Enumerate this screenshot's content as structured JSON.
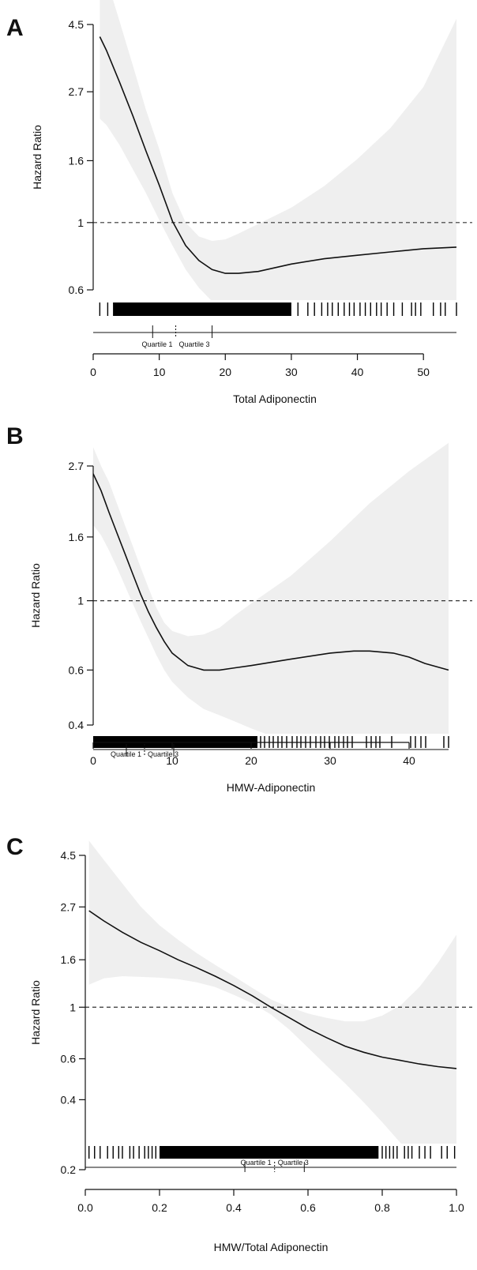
{
  "chart_data": [
    {
      "type": "line",
      "panel_label": "A",
      "xlabel": "Total Adiponectin",
      "ylabel": "Hazard Ratio",
      "log_y": true,
      "xlim": [
        0,
        55
      ],
      "ylim": [
        0.6,
        4.5
      ],
      "x_ticks": [
        0,
        10,
        20,
        30,
        40,
        50
      ],
      "y_ticks": [
        0.6,
        1,
        1.6,
        2.7,
        4.5
      ],
      "y_tick_labels": [
        "0.6",
        "1",
        "1.6",
        "2.7",
        "4.5"
      ],
      "reference_line": 1,
      "series": [
        {
          "x": [
            1,
            2,
            4,
            6,
            8,
            10,
            12,
            14,
            16,
            18,
            20,
            22,
            25,
            30,
            35,
            40,
            45,
            50,
            55
          ],
          "y": [
            4.1,
            3.7,
            2.9,
            2.25,
            1.72,
            1.33,
            1.01,
            0.84,
            0.75,
            0.7,
            0.68,
            0.68,
            0.69,
            0.73,
            0.76,
            0.78,
            0.8,
            0.82,
            0.83
          ]
        }
      ],
      "ci_band": {
        "x": [
          1,
          2,
          4,
          6,
          8,
          10,
          12,
          14,
          16,
          18,
          20,
          22,
          25,
          30,
          35,
          40,
          45,
          50,
          55
        ],
        "lower": [
          2.2,
          2.1,
          1.8,
          1.5,
          1.25,
          1.02,
          0.84,
          0.7,
          0.61,
          0.55,
          0.5,
          0.46,
          0.42,
          0.36,
          0.31,
          0.27,
          0.23,
          0.2,
          0.17
        ],
        "upper": [
          7.8,
          6.4,
          4.6,
          3.3,
          2.35,
          1.75,
          1.25,
          1.0,
          0.9,
          0.87,
          0.88,
          0.92,
          0.99,
          1.12,
          1.32,
          1.62,
          2.05,
          2.8,
          4.7
        ]
      },
      "rug": {
        "dense_range": [
          3,
          30
        ],
        "ticks": [
          1,
          2.2,
          31,
          32.5,
          33.5,
          34.6,
          35.5,
          36.2,
          37.1,
          38,
          38.8,
          39.5,
          40.4,
          41.2,
          42,
          42.9,
          43.6,
          44.5,
          45.5,
          46.8,
          48.2,
          48.8,
          49.6,
          51.5,
          52.6,
          53.3,
          55
        ]
      },
      "quartiles": {
        "labels": [
          "Quartile 1",
          "Quartile 3"
        ],
        "positions": [
          9,
          12.5,
          18
        ]
      }
    },
    {
      "type": "line",
      "panel_label": "B",
      "xlabel": "HMW-Adiponectin",
      "ylabel": "Hazard Ratio",
      "log_y": true,
      "xlim": [
        0,
        45
      ],
      "ylim": [
        0.4,
        2.7
      ],
      "x_ticks": [
        0,
        10,
        20,
        30,
        40
      ],
      "y_ticks": [
        0.4,
        0.6,
        1,
        1.6,
        2.7
      ],
      "y_tick_labels": [
        "0.4",
        "0.6",
        "1",
        "1.6",
        "2.7"
      ],
      "reference_line": 1,
      "series": [
        {
          "x": [
            0,
            1,
            2,
            3,
            4,
            5,
            6,
            7,
            8,
            9,
            10,
            12,
            14,
            16,
            18,
            20,
            25,
            30,
            33,
            35,
            38,
            40,
            42,
            45
          ],
          "y": [
            2.55,
            2.25,
            1.92,
            1.65,
            1.42,
            1.22,
            1.05,
            0.92,
            0.82,
            0.74,
            0.68,
            0.62,
            0.6,
            0.6,
            0.61,
            0.62,
            0.65,
            0.68,
            0.69,
            0.69,
            0.68,
            0.66,
            0.63,
            0.6
          ]
        }
      ],
      "ci_band": {
        "x": [
          0,
          1,
          2,
          3,
          4,
          5,
          6,
          7,
          8,
          9,
          10,
          12,
          14,
          16,
          18,
          20,
          25,
          30,
          35,
          40,
          45
        ],
        "lower": [
          1.75,
          1.62,
          1.45,
          1.28,
          1.12,
          0.98,
          0.86,
          0.76,
          0.67,
          0.6,
          0.55,
          0.49,
          0.45,
          0.43,
          0.41,
          0.39,
          0.35,
          0.32,
          0.3,
          0.29,
          0.28
        ],
        "upper": [
          3.1,
          2.7,
          2.4,
          2.05,
          1.75,
          1.5,
          1.28,
          1.1,
          0.95,
          0.85,
          0.8,
          0.77,
          0.78,
          0.82,
          0.9,
          0.98,
          1.2,
          1.55,
          2.05,
          2.6,
          3.2
        ]
      },
      "rug": {
        "dense_range": [
          0,
          20.8
        ],
        "ticks": [
          21.2,
          21.7,
          22.3,
          22.8,
          23.4,
          23.9,
          24.5,
          25.2,
          25.8,
          26.3,
          26.9,
          27.5,
          28.2,
          28.8,
          29.3,
          29.9,
          30.6,
          31.1,
          31.7,
          32.2,
          32.8,
          34.6,
          35.2,
          35.8,
          36.3,
          37.8,
          40.2,
          40.8,
          41.5,
          42.1,
          44.4,
          45
        ]
      },
      "quartiles": {
        "labels": [
          "Quartile 1",
          "Quartile 3"
        ],
        "positions": [
          4.2,
          6.5,
          10.2
        ]
      }
    },
    {
      "type": "line",
      "panel_label": "C",
      "xlabel": "HMW/Total Adiponectin",
      "ylabel": "Hazard Ratio",
      "log_y": true,
      "xlim": [
        0,
        1
      ],
      "ylim": [
        0.2,
        4.5
      ],
      "x_ticks": [
        0,
        0.2,
        0.4,
        0.6,
        0.8,
        1
      ],
      "x_tick_labels": [
        "0.0",
        "0.2",
        "0.4",
        "0.6",
        "0.8",
        "1.0"
      ],
      "y_ticks": [
        0.2,
        0.4,
        0.6,
        1,
        1.6,
        2.7,
        4.5
      ],
      "y_tick_labels": [
        "0.2",
        "0.4",
        "0.6",
        "1",
        "1.6",
        "2.7",
        "4.5"
      ],
      "reference_line": 1,
      "series": [
        {
          "x": [
            0.01,
            0.05,
            0.1,
            0.15,
            0.2,
            0.25,
            0.3,
            0.35,
            0.4,
            0.45,
            0.5,
            0.55,
            0.6,
            0.65,
            0.7,
            0.75,
            0.8,
            0.85,
            0.9,
            0.95,
            1.0
          ],
          "y": [
            2.6,
            2.35,
            2.1,
            1.9,
            1.75,
            1.6,
            1.48,
            1.36,
            1.24,
            1.12,
            1.0,
            0.9,
            0.81,
            0.74,
            0.68,
            0.64,
            0.61,
            0.59,
            0.57,
            0.555,
            0.545
          ]
        }
      ],
      "ci_band": {
        "x": [
          0.01,
          0.05,
          0.1,
          0.15,
          0.2,
          0.25,
          0.3,
          0.35,
          0.4,
          0.45,
          0.5,
          0.55,
          0.6,
          0.65,
          0.7,
          0.75,
          0.8,
          0.85,
          0.9,
          0.95,
          1.0
        ],
        "lower": [
          1.25,
          1.33,
          1.36,
          1.35,
          1.34,
          1.32,
          1.28,
          1.22,
          1.13,
          1.04,
          0.93,
          0.8,
          0.67,
          0.56,
          0.47,
          0.39,
          0.32,
          0.26,
          0.21,
          0.17,
          0.14
        ],
        "upper": [
          5.2,
          4.3,
          3.4,
          2.7,
          2.25,
          1.95,
          1.71,
          1.52,
          1.36,
          1.21,
          1.08,
          1.0,
          0.94,
          0.9,
          0.87,
          0.87,
          0.92,
          1.02,
          1.22,
          1.55,
          2.05
        ]
      },
      "rug": {
        "dense_range": [
          0.2,
          0.79
        ],
        "ticks": [
          0.01,
          0.025,
          0.04,
          0.06,
          0.075,
          0.09,
          0.1,
          0.12,
          0.13,
          0.145,
          0.16,
          0.17,
          0.18,
          0.19,
          0.8,
          0.81,
          0.82,
          0.83,
          0.84,
          0.86,
          0.87,
          0.88,
          0.9,
          0.915,
          0.93,
          0.96,
          0.975,
          0.995
        ]
      },
      "quartiles": {
        "labels": [
          "Quartile 1",
          "Quartile 3"
        ],
        "positions": [
          0.43,
          0.51,
          0.59
        ]
      }
    }
  ]
}
